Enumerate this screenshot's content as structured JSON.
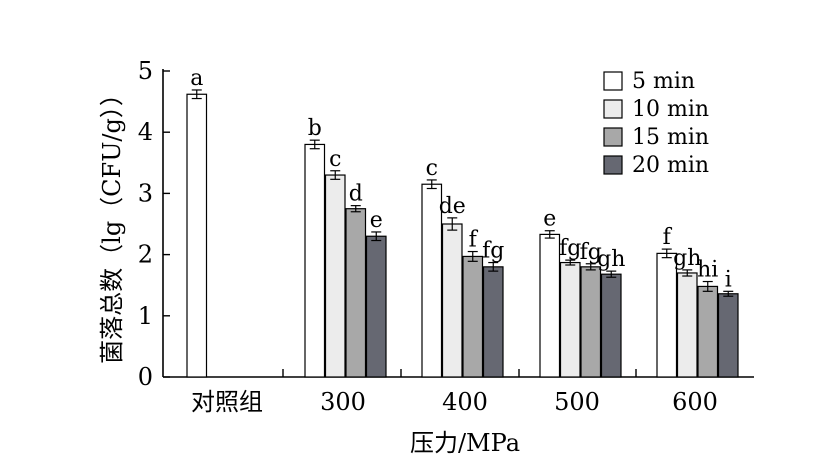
{
  "chart_data": {
    "type": "bar",
    "xlabel": "压力/MPa",
    "ylabel": "菌落总数（lg（CFU/g））",
    "ylim": [
      0,
      5
    ],
    "yticks": [
      "0",
      "1",
      "2",
      "3",
      "4",
      "5"
    ],
    "categories": [
      "对照组",
      "300",
      "400",
      "500",
      "600"
    ],
    "legend_position": "top-right",
    "series": [
      {
        "name": "5 min",
        "color": "#ffffff",
        "values": [
          4.62,
          3.8,
          3.15,
          2.33,
          2.02
        ],
        "errors": [
          0.07,
          0.07,
          0.07,
          0.06,
          0.07
        ],
        "letters": [
          "a",
          "b",
          "c",
          "e",
          "f"
        ]
      },
      {
        "name": "10 min",
        "color": "#ececec",
        "values": [
          null,
          3.3,
          2.5,
          1.87,
          1.7
        ],
        "errors": [
          null,
          0.07,
          0.1,
          0.04,
          0.05
        ],
        "letters": [
          null,
          "c",
          "de",
          "fg",
          "gh"
        ]
      },
      {
        "name": "15 min",
        "color": "#a8a8a8",
        "values": [
          null,
          2.75,
          1.97,
          1.8,
          1.48
        ],
        "errors": [
          null,
          0.05,
          0.08,
          0.05,
          0.08
        ],
        "letters": [
          null,
          "d",
          "f",
          "fg",
          "hi"
        ]
      },
      {
        "name": "20 min",
        "color": "#666872",
        "values": [
          null,
          2.3,
          1.8,
          1.68,
          1.36
        ],
        "errors": [
          null,
          0.07,
          0.07,
          0.05,
          0.04
        ],
        "letters": [
          null,
          "e",
          "fg",
          "gh",
          "i"
        ]
      }
    ]
  }
}
